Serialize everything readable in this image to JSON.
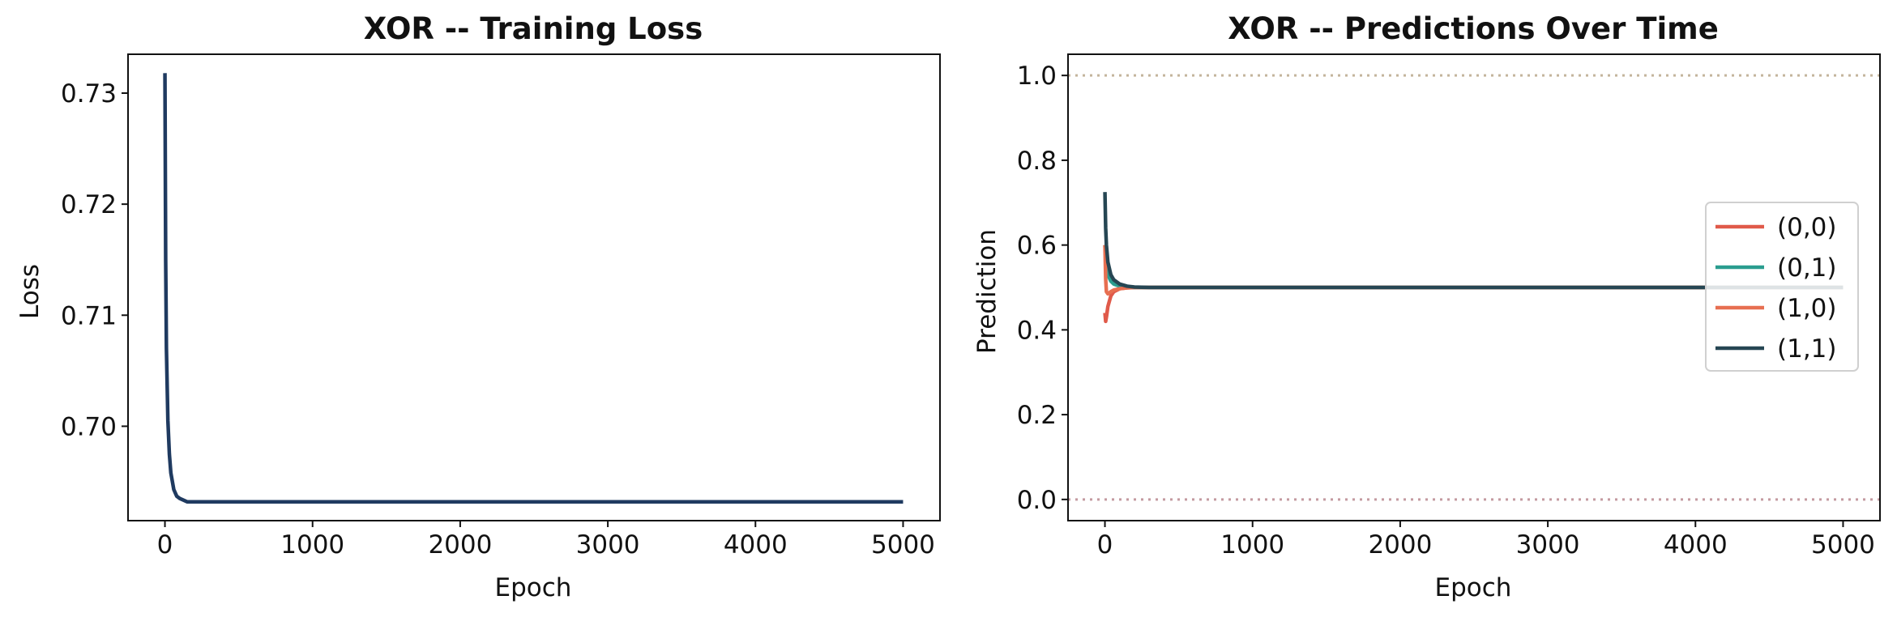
{
  "chart_data": [
    {
      "type": "line",
      "title": "XOR -- Training Loss",
      "xlabel": "Epoch",
      "ylabel": "Loss",
      "xlim": [
        -250,
        5250
      ],
      "ylim": [
        0.6915,
        0.7335
      ],
      "xticks": [
        0,
        1000,
        2000,
        3000,
        4000,
        5000
      ],
      "xtick_labels": [
        "0",
        "1000",
        "2000",
        "3000",
        "4000",
        "5000"
      ],
      "yticks": [
        0.7,
        0.71,
        0.72,
        0.73
      ],
      "ytick_labels": [
        "0.70",
        "0.71",
        "0.72",
        "0.73"
      ],
      "grid": false,
      "series": [
        {
          "color": "#1f3a60",
          "x": [
            0,
            5,
            10,
            20,
            30,
            40,
            60,
            80,
            100,
            150,
            200,
            300,
            500,
            1000,
            2000,
            3000,
            4000,
            5000
          ],
          "y": [
            0.7318,
            0.715,
            0.707,
            0.7005,
            0.6975,
            0.6958,
            0.6943,
            0.6937,
            0.6935,
            0.6932,
            0.6932,
            0.6932,
            0.6932,
            0.6932,
            0.6932,
            0.6932,
            0.6932,
            0.6932
          ]
        }
      ]
    },
    {
      "type": "line",
      "title": "XOR -- Predictions Over Time",
      "xlabel": "Epoch",
      "ylabel": "Prediction",
      "xlim": [
        -250,
        5250
      ],
      "ylim": [
        -0.05,
        1.05
      ],
      "xticks": [
        0,
        1000,
        2000,
        3000,
        4000,
        5000
      ],
      "xtick_labels": [
        "0",
        "1000",
        "2000",
        "3000",
        "4000",
        "5000"
      ],
      "yticks": [
        0.0,
        0.2,
        0.4,
        0.6,
        0.8,
        1.0
      ],
      "ytick_labels": [
        "0.0",
        "0.2",
        "0.4",
        "0.6",
        "0.8",
        "1.0"
      ],
      "grid": false,
      "legend": "center-right",
      "reference_lines": [
        {
          "y": 1.0,
          "color": "#c4b59c",
          "style": "dotted"
        },
        {
          "y": 0.0,
          "color": "#c49aa0",
          "style": "dotted"
        }
      ],
      "series": [
        {
          "name": "(0,0)",
          "color": "#e05a4a",
          "x": [
            0,
            5,
            10,
            20,
            40,
            60,
            100,
            150,
            200,
            300,
            500,
            1000,
            2000,
            3000,
            4000,
            5000
          ],
          "y": [
            0.44,
            0.42,
            0.43,
            0.455,
            0.48,
            0.49,
            0.497,
            0.499,
            0.5,
            0.5,
            0.5,
            0.5,
            0.5,
            0.5,
            0.5,
            0.5
          ]
        },
        {
          "name": "(0,1)",
          "color": "#2a9d8f",
          "x": [
            0,
            5,
            10,
            20,
            40,
            60,
            100,
            150,
            200,
            300,
            500,
            1000,
            2000,
            3000,
            4000,
            5000
          ],
          "y": [
            0.6,
            0.57,
            0.55,
            0.53,
            0.515,
            0.508,
            0.503,
            0.501,
            0.5,
            0.5,
            0.5,
            0.5,
            0.5,
            0.5,
            0.5,
            0.5
          ]
        },
        {
          "name": "(1,0)",
          "color": "#e76f51",
          "x": [
            0,
            5,
            10,
            20,
            40,
            60,
            100,
            150,
            200,
            300,
            500,
            1000,
            2000,
            3000,
            4000,
            5000
          ],
          "y": [
            0.6,
            0.52,
            0.49,
            0.485,
            0.49,
            0.494,
            0.497,
            0.499,
            0.5,
            0.5,
            0.5,
            0.5,
            0.5,
            0.5,
            0.5,
            0.5
          ]
        },
        {
          "name": "(1,1)",
          "color": "#264653",
          "x": [
            0,
            5,
            10,
            20,
            40,
            60,
            100,
            150,
            200,
            300,
            500,
            1000,
            2000,
            3000,
            4000,
            5000
          ],
          "y": [
            0.725,
            0.64,
            0.6,
            0.56,
            0.53,
            0.518,
            0.508,
            0.503,
            0.501,
            0.5,
            0.5,
            0.5,
            0.5,
            0.5,
            0.5,
            0.5
          ]
        }
      ]
    }
  ]
}
